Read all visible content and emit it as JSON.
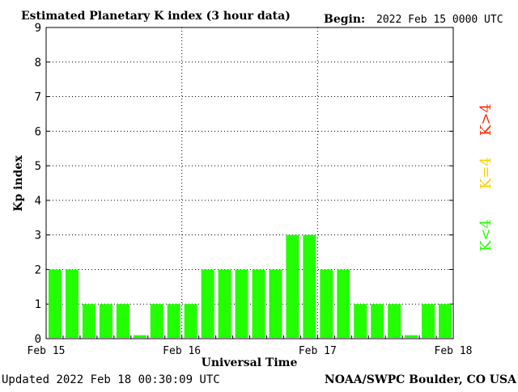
{
  "header": {
    "title": "Estimated Planetary K index (3 hour data)",
    "begin_label": "Begin:",
    "begin_value": "2022 Feb 15 0000 UTC"
  },
  "footer": {
    "updated": "Updated 2022 Feb 18 00:30:09 UTC",
    "credit": "NOAA/SWPC Boulder, CO USA"
  },
  "legend": {
    "high": "K>4",
    "mid": "K=4",
    "low": "K<4"
  },
  "colors": {
    "bar_low": "#22ff00",
    "legend_high": "#ff2a00",
    "legend_mid": "#ffd000",
    "legend_low": "#22ff00",
    "axis": "#000000",
    "grid": "#000000"
  },
  "chart_data": {
    "type": "bar",
    "title": "Estimated Planetary K index (3 hour data)",
    "xlabel": "Universal Time",
    "ylabel": "Kp index",
    "ylim": [
      0,
      9
    ],
    "yticks": [
      "0",
      "1",
      "2",
      "3",
      "4",
      "5",
      "6",
      "7",
      "8",
      "9"
    ],
    "xticks": [
      "Feb 15",
      "Feb 16",
      "Feb 17",
      "Feb 18"
    ],
    "grid": true,
    "bars_per_day": 8,
    "values": [
      2,
      2,
      1,
      1,
      1,
      0.1,
      1,
      1,
      1,
      2,
      2,
      2,
      2,
      2,
      3,
      3,
      2,
      2,
      1,
      1,
      1,
      0.1,
      1,
      1
    ]
  }
}
